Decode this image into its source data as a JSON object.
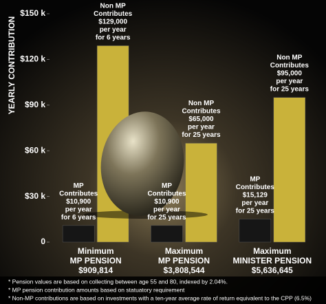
{
  "chart_data": {
    "type": "bar",
    "y_label": "YEARLY CONTRIBUTION",
    "categories": [
      [
        "Minimum",
        "MP PENSION",
        "$909,814"
      ],
      [
        "Maximum",
        "MP PENSION",
        "$3,808,544"
      ],
      [
        "Maximum",
        "MINISTER PENSION",
        "$5,636,645"
      ]
    ],
    "series": [
      {
        "name": "MP",
        "color": "#161616",
        "label_verb": "Contributes",
        "values": [
          10900,
          10900,
          15129
        ],
        "value_labels": [
          "$10,900",
          "$10,900",
          "$15,129"
        ],
        "label_notes": [
          [
            "per year",
            "for 6 years"
          ],
          [
            "per year",
            "for 25 years"
          ],
          [
            "per year",
            "for 25 years"
          ]
        ]
      },
      {
        "name": "Non MP",
        "color": "#c9b23a",
        "label_verb": "Contributes",
        "values": [
          129000,
          65000,
          95000
        ],
        "value_labels": [
          "$129,000",
          "$65,000",
          "$95,000"
        ],
        "label_notes": [
          [
            "per year",
            "for 6 years"
          ],
          [
            "per year",
            "for 25 years"
          ],
          [
            "per year",
            "for 25 years"
          ]
        ]
      }
    ],
    "ylim": [
      0,
      150000
    ],
    "yticks": [
      0,
      {
        "value": 30000,
        "label": "$30 k"
      },
      {
        "value": 60000,
        "label": "$60 k"
      },
      {
        "value": 90000,
        "label": "$90 k"
      },
      {
        "value": 120000,
        "label": "$120 k"
      },
      {
        "value": 150000,
        "label": "$150 k"
      }
    ],
    "footnotes": [
      "* Pension values are based on collecting between age 55 and 80, indexed by 2.04%.",
      "* MP pension contribution amounts based on statuatory requirement",
      "* Non-MP contributions are based on investments with a ten-year average rate of return equivalent to the CPP (6.5%)"
    ]
  }
}
